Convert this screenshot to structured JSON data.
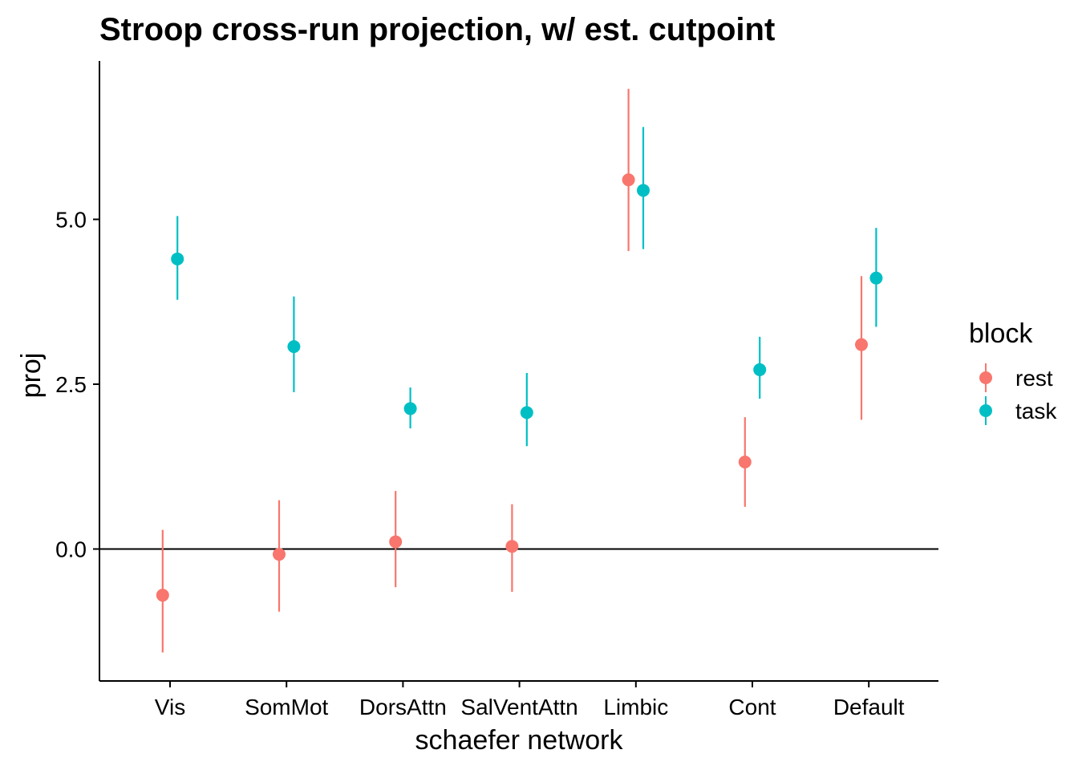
{
  "chart_data": {
    "type": "scatter",
    "title": "Stroop cross-run projection, w/ est. cutpoint",
    "xlabel": "schaefer network",
    "ylabel": "proj",
    "categories": [
      "Vis",
      "SomMot",
      "DorsAttn",
      "SalVentAttn",
      "Limbic",
      "Cont",
      "Default"
    ],
    "yticks": [
      "0.0",
      "2.5",
      "5.0"
    ],
    "ylim": [
      -2.0,
      7.3
    ],
    "hline": 0,
    "legend": {
      "title": "block",
      "position": "right",
      "entries": [
        "rest",
        "task"
      ]
    },
    "series": [
      {
        "name": "rest",
        "color": "#F8766D",
        "values": [
          -0.7,
          -0.08,
          0.11,
          0.04,
          5.6,
          1.32,
          3.1
        ],
        "lower": [
          -1.57,
          -0.95,
          -0.58,
          -0.65,
          4.52,
          0.64,
          1.96
        ],
        "upper": [
          0.29,
          0.74,
          0.88,
          0.68,
          6.98,
          2.0,
          4.14
        ]
      },
      {
        "name": "task",
        "color": "#00BFC4",
        "values": [
          4.4,
          3.07,
          2.13,
          2.07,
          5.44,
          2.72,
          4.11
        ],
        "lower": [
          3.78,
          2.38,
          1.83,
          1.56,
          4.55,
          2.28,
          3.37
        ],
        "upper": [
          5.05,
          3.83,
          2.45,
          2.67,
          6.4,
          3.22,
          4.87
        ]
      }
    ]
  }
}
